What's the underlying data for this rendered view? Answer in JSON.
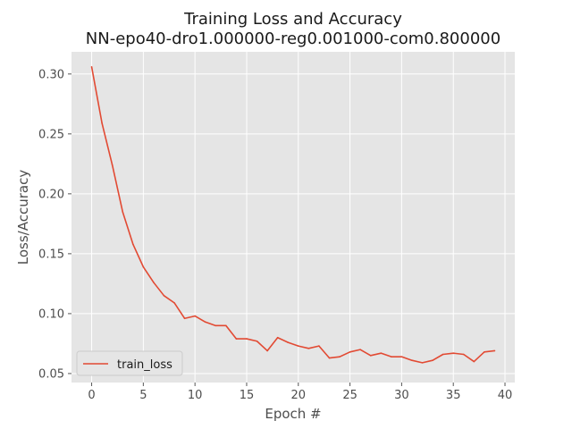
{
  "chart_data": {
    "type": "line",
    "title": "Training Loss and Accuracy",
    "subtitle": "NN-epo40-dro1.000000-reg0.001000-com0.800000",
    "xlabel": "Epoch #",
    "ylabel": "Loss/Accuracy",
    "xlim": [
      -1.95,
      40.95
    ],
    "ylim": [
      0.0425,
      0.3185
    ],
    "xticks": [
      0,
      5,
      10,
      15,
      20,
      25,
      30,
      35,
      40
    ],
    "xtick_labels": [
      "0",
      "5",
      "10",
      "15",
      "20",
      "25",
      "30",
      "35",
      "40"
    ],
    "yticks": [
      0.05,
      0.1,
      0.15,
      0.2,
      0.25,
      0.3
    ],
    "ytick_labels": [
      "0.05",
      "0.10",
      "0.15",
      "0.20",
      "0.25",
      "0.30"
    ],
    "grid": true,
    "legend_position": "lower-left",
    "colors": {
      "background": "#e5e5e5",
      "grid": "#ffffff",
      "series": "#e24a33"
    },
    "series": [
      {
        "name": "train_loss",
        "x": [
          0,
          1,
          2,
          3,
          4,
          5,
          6,
          7,
          8,
          9,
          10,
          11,
          12,
          13,
          14,
          15,
          16,
          17,
          18,
          19,
          20,
          21,
          22,
          23,
          24,
          25,
          26,
          27,
          28,
          29,
          30,
          31,
          32,
          33,
          34,
          35,
          36,
          37,
          38,
          39
        ],
        "values": [
          0.306,
          0.259,
          0.224,
          0.185,
          0.158,
          0.139,
          0.126,
          0.115,
          0.109,
          0.096,
          0.098,
          0.093,
          0.09,
          0.09,
          0.079,
          0.079,
          0.077,
          0.069,
          0.08,
          0.076,
          0.073,
          0.071,
          0.073,
          0.063,
          0.064,
          0.068,
          0.07,
          0.065,
          0.067,
          0.064,
          0.064,
          0.061,
          0.059,
          0.061,
          0.066,
          0.067,
          0.066,
          0.06,
          0.068,
          0.069
        ]
      }
    ]
  }
}
